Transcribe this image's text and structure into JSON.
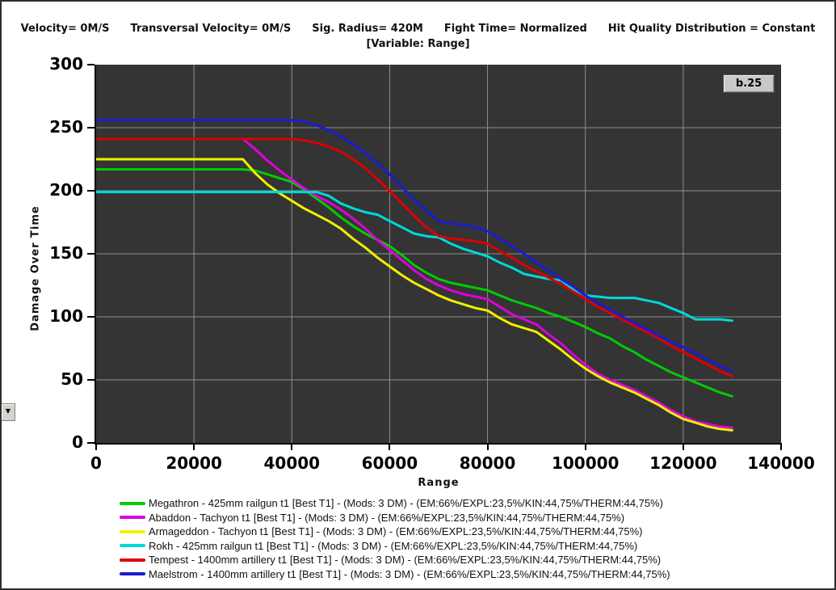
{
  "header": {
    "segments": [
      "Velocity= 0M/S",
      "Transversal Velocity= 0M/S",
      "Sig. Radius= 420M",
      "Fight Time= Normalized",
      "Hit Quality Distribution = Constant"
    ],
    "variable_line": "[Variable: Range]"
  },
  "badge": {
    "label": "b.25"
  },
  "icons": {
    "caret_down": "▼"
  },
  "chart_data": {
    "type": "line",
    "title": "Damage Over Time vs Range",
    "grid": true,
    "legend_position": "bottom-left",
    "plot_bg": "#343434",
    "grid_color": "#909090",
    "x_axis": {
      "label": "Range",
      "min": 0,
      "max": 140000,
      "tick_step": 20000,
      "ticks": [
        "0",
        "20000",
        "40000",
        "60000",
        "80000",
        "100000",
        "120000",
        "140000"
      ]
    },
    "y_axis": {
      "label": "Damage Over Time",
      "min": 0,
      "max": 300,
      "tick_step": 50,
      "ticks": [
        "0",
        "50",
        "100",
        "150",
        "200",
        "250",
        "300"
      ]
    },
    "x": [
      0,
      5000,
      10000,
      15000,
      20000,
      25000,
      30000,
      32500,
      35000,
      37500,
      40000,
      42500,
      45000,
      47500,
      50000,
      52500,
      55000,
      57500,
      60000,
      62500,
      65000,
      67500,
      70000,
      72500,
      75000,
      77500,
      80000,
      82500,
      85000,
      87500,
      90000,
      92500,
      95000,
      97500,
      100000,
      102500,
      105000,
      107500,
      110000,
      112500,
      115000,
      117500,
      120000,
      122500,
      125000,
      127500,
      130000
    ],
    "series": [
      {
        "id": "megathron",
        "label": "Megathron - 425mm railgun t1 [Best T1] - (Mods: 3 DM) - (EM:66%/EXPL:23,5%/KIN:44,75%/THERM:44,75%)",
        "color": "#00cc00",
        "values": [
          217,
          217,
          217,
          217,
          217,
          217,
          217,
          216,
          213,
          210,
          207,
          201,
          194,
          187,
          179,
          172,
          166,
          161,
          156,
          149,
          141,
          135,
          130,
          127,
          125,
          123,
          121,
          117,
          113,
          110,
          107,
          103,
          100,
          96,
          92,
          87,
          83,
          77,
          72,
          66,
          61,
          56,
          52,
          48,
          44,
          40,
          37
        ]
      },
      {
        "id": "abaddon",
        "label": "Abaddon - Tachyon t1 [Best T1] - (Mods: 3 DM) - (EM:66%/EXPL:23,5%/KIN:44,75%/THERM:44,75%)",
        "color": "#dd00dd",
        "values": [
          241,
          241,
          241,
          241,
          241,
          241,
          241,
          233,
          224,
          216,
          209,
          202,
          196,
          191,
          185,
          178,
          170,
          161,
          153,
          145,
          137,
          130,
          125,
          121,
          118,
          116,
          114,
          108,
          102,
          98,
          94,
          86,
          79,
          70,
          62,
          55,
          50,
          46,
          42,
          37,
          32,
          26,
          21,
          17,
          15,
          13,
          12
        ]
      },
      {
        "id": "armageddon",
        "label": "Armageddon - Tachyon t1 [Best T1] - (Mods: 3 DM) - (EM:66%/EXPL:23,5%/KIN:44,75%/THERM:44,75%)",
        "color": "#f0f000",
        "values": [
          225,
          225,
          225,
          225,
          225,
          225,
          225,
          214,
          205,
          198,
          192,
          186,
          181,
          176,
          170,
          162,
          155,
          147,
          140,
          133,
          127,
          122,
          117,
          113,
          110,
          107,
          105,
          99,
          94,
          91,
          88,
          81,
          74,
          66,
          59,
          53,
          48,
          44,
          40,
          35,
          30,
          24,
          19,
          16,
          13,
          11,
          10
        ]
      },
      {
        "id": "rokh",
        "label": "Rokh - 425mm railgun t1 [Best T1] - (Mods: 3 DM) - (EM:66%/EXPL:23,5%/KIN:44,75%/THERM:44,75%)",
        "color": "#00d9d9",
        "values": [
          199,
          199,
          199,
          199,
          199,
          199,
          199,
          199,
          199,
          199,
          199,
          199,
          199,
          196,
          190,
          186,
          183,
          181,
          176,
          171,
          166,
          164,
          163,
          158,
          154,
          151,
          148,
          143,
          139,
          134,
          132,
          130,
          129,
          122,
          117,
          116,
          115,
          115,
          115,
          113,
          111,
          107,
          103,
          98,
          98,
          98,
          97
        ]
      },
      {
        "id": "tempest",
        "label": "Tempest - 1400mm artillery t1 [Best T1] - (Mods: 3 DM) - (EM:66%/EXPL:23,5%/KIN:44,75%/THERM:44,75%)",
        "color": "#dd0000",
        "values": [
          241,
          241,
          241,
          241,
          241,
          241,
          241,
          241,
          241,
          241,
          241,
          240,
          238,
          235,
          231,
          225,
          218,
          209,
          200,
          190,
          180,
          171,
          164,
          162,
          161,
          160,
          158,
          152,
          147,
          141,
          136,
          131,
          126,
          120,
          114,
          108,
          103,
          98,
          93,
          88,
          83,
          77,
          72,
          67,
          62,
          57,
          53
        ]
      },
      {
        "id": "maelstrom",
        "label": "Maelstrom - 1400mm artillery t1 [Best T1] - (Mods: 3 DM) - (EM:66%/EXPL:23,5%/KIN:44,75%/THERM:44,75%)",
        "color": "#1b1bd1",
        "values": [
          256,
          256,
          256,
          256,
          256,
          256,
          256,
          256,
          256,
          256,
          256,
          255,
          252,
          248,
          243,
          237,
          230,
          222,
          213,
          203,
          193,
          184,
          176,
          174,
          173,
          171,
          168,
          162,
          156,
          150,
          143,
          137,
          130,
          124,
          117,
          111,
          106,
          100,
          95,
          90,
          85,
          80,
          76,
          71,
          66,
          61,
          57
        ]
      }
    ]
  }
}
